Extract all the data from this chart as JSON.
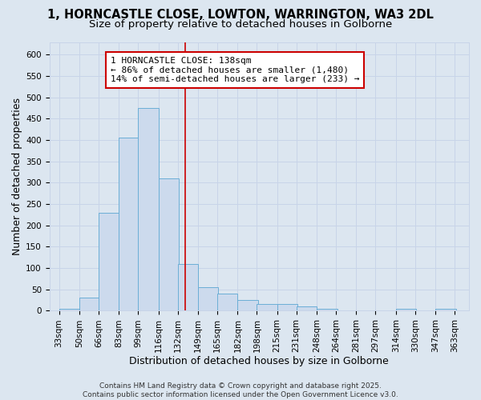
{
  "title_line1": "1, HORNCASTLE CLOSE, LOWTON, WARRINGTON, WA3 2DL",
  "title_line2": "Size of property relative to detached houses in Golborne",
  "xlabel": "Distribution of detached houses by size in Golborne",
  "ylabel": "Number of detached properties",
  "bar_left_edges": [
    33,
    50,
    66,
    83,
    99,
    116,
    132,
    149,
    165,
    182,
    198,
    215,
    231,
    248,
    264,
    281,
    297,
    314,
    330,
    347
  ],
  "bar_heights": [
    5,
    30,
    230,
    405,
    475,
    310,
    110,
    55,
    40,
    25,
    15,
    15,
    10,
    5,
    0,
    0,
    0,
    5,
    0,
    5
  ],
  "bin_width": 17,
  "bar_facecolor": "#ccdaed",
  "bar_edgecolor": "#6baed6",
  "vline_x": 138,
  "vline_color": "#cc0000",
  "annotation_line1": "1 HORNCASTLE CLOSE: 138sqm",
  "annotation_line2": "← 86% of detached houses are smaller (1,480)",
  "annotation_line3": "14% of semi-detached houses are larger (233) →",
  "annotation_box_edgecolor": "#cc0000",
  "annotation_box_facecolor": "#ffffff",
  "grid_color": "#c8d4e8",
  "background_color": "#dce6f0",
  "yticks": [
    0,
    50,
    100,
    150,
    200,
    250,
    300,
    350,
    400,
    450,
    500,
    550,
    600
  ],
  "xtick_labels": [
    "33sqm",
    "50sqm",
    "66sqm",
    "83sqm",
    "99sqm",
    "116sqm",
    "132sqm",
    "149sqm",
    "165sqm",
    "182sqm",
    "198sqm",
    "215sqm",
    "231sqm",
    "248sqm",
    "264sqm",
    "281sqm",
    "297sqm",
    "314sqm",
    "330sqm",
    "347sqm",
    "363sqm"
  ],
  "xtick_positions": [
    33,
    50,
    66,
    83,
    99,
    116,
    132,
    149,
    165,
    182,
    198,
    215,
    231,
    248,
    264,
    281,
    297,
    314,
    330,
    347,
    363
  ],
  "ylim": [
    0,
    630
  ],
  "xlim": [
    25,
    375
  ],
  "footer_text": "Contains HM Land Registry data © Crown copyright and database right 2025.\nContains public sector information licensed under the Open Government Licence v3.0.",
  "title_fontsize": 10.5,
  "subtitle_fontsize": 9.5,
  "axis_label_fontsize": 9,
  "tick_fontsize": 7.5,
  "annotation_fontsize": 8,
  "footer_fontsize": 6.5
}
